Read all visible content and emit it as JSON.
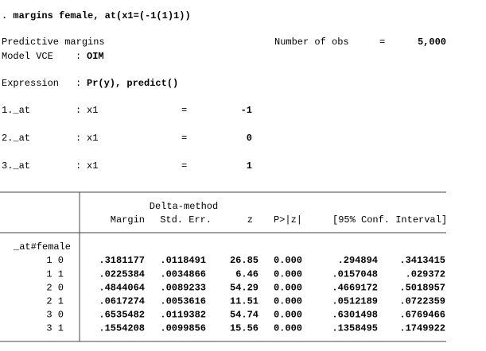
{
  "command": ". margins female, at(x1=(-1(1)1))",
  "info": {
    "title": "Predictive margins",
    "nobs_label": "Number of obs",
    "nobs_eq": "=",
    "nobs": "5,000",
    "model_vce": {
      "label": "Model VCE",
      "sep": ":",
      "value": "OIM"
    },
    "expression": {
      "label": "Expression",
      "sep": ":",
      "value": "Pr(y), predict()"
    }
  },
  "at_rows": [
    {
      "label": "1._at",
      "sep": ":",
      "var": "x1",
      "eq": "=",
      "value": "-1"
    },
    {
      "label": "2._at",
      "sep": ":",
      "var": "x1",
      "eq": "=",
      "value": "0"
    },
    {
      "label": "3._at",
      "sep": ":",
      "var": "x1",
      "eq": "=",
      "value": "1"
    }
  ],
  "table": {
    "super_header": "Delta-method",
    "columns": [
      "Margin",
      "Std. Err.",
      "z",
      "P>|z|",
      "[95% Conf. Interval]"
    ],
    "group": "_at#female",
    "rows": [
      {
        "label": "1 0",
        "cells": [
          ".3181177",
          ".0118491",
          "26.85",
          "0.000",
          ".294894",
          ".3413415"
        ]
      },
      {
        "label": "1 1",
        "cells": [
          ".0225384",
          ".0034866",
          "6.46",
          "0.000",
          ".0157048",
          ".029372"
        ]
      },
      {
        "label": "2 0",
        "cells": [
          ".4844064",
          ".0089233",
          "54.29",
          "0.000",
          ".4669172",
          ".5018957"
        ]
      },
      {
        "label": "2 1",
        "cells": [
          ".0617274",
          ".0053616",
          "11.51",
          "0.000",
          ".0512189",
          ".0722359"
        ]
      },
      {
        "label": "3 0",
        "cells": [
          ".6535482",
          ".0119382",
          "54.74",
          "0.000",
          ".6301498",
          ".6769466"
        ]
      },
      {
        "label": "3 1",
        "cells": [
          ".1554208",
          ".0099856",
          "15.56",
          "0.000",
          ".1358495",
          ".1749922"
        ]
      }
    ]
  }
}
